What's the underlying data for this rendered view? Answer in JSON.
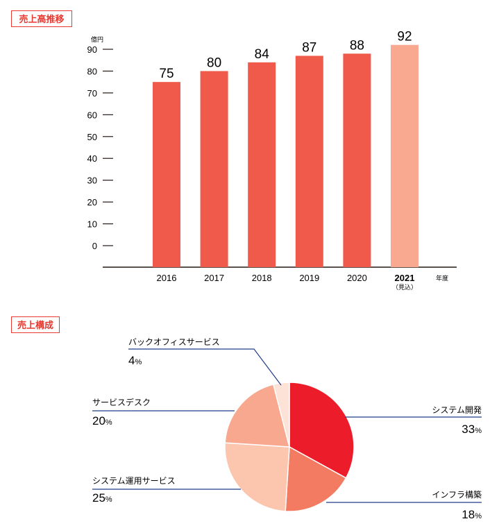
{
  "sales_section": {
    "title": "売上高推移"
  },
  "composition_section": {
    "title": "売上構成"
  },
  "chart_data": [
    {
      "type": "bar",
      "title": "売上高推移",
      "ylabel": "億円",
      "xlabel": "年度",
      "ylim": [
        0,
        90
      ],
      "yticks": [
        90,
        80,
        70,
        60,
        50,
        40,
        30,
        20,
        10,
        0
      ],
      "categories": [
        "2016",
        "2017",
        "2018",
        "2019",
        "2020",
        "2021"
      ],
      "category_notes": [
        "",
        "",
        "",
        "",
        "",
        "（見込）"
      ],
      "values": [
        75,
        80,
        84,
        87,
        88,
        92
      ],
      "colors": [
        "#f05a4a",
        "#f05a4a",
        "#f05a4a",
        "#f05a4a",
        "#f05a4a",
        "#f8a990"
      ],
      "grid": false
    },
    {
      "type": "pie",
      "title": "売上構成",
      "unit": "%",
      "slices": [
        {
          "label": "システム開発",
          "value": 33,
          "color": "#ed1c2b"
        },
        {
          "label": "インフラ構築",
          "value": 18,
          "color": "#f27b62"
        },
        {
          "label": "システム運用サービス",
          "value": 25,
          "color": "#fbc5ae"
        },
        {
          "label": "サービスデスク",
          "value": 20,
          "color": "#f7a88e"
        },
        {
          "label": "バックオフィスサービス",
          "value": 4,
          "color": "#fde2d7"
        }
      ],
      "leader_color": "#1f3c88"
    }
  ]
}
